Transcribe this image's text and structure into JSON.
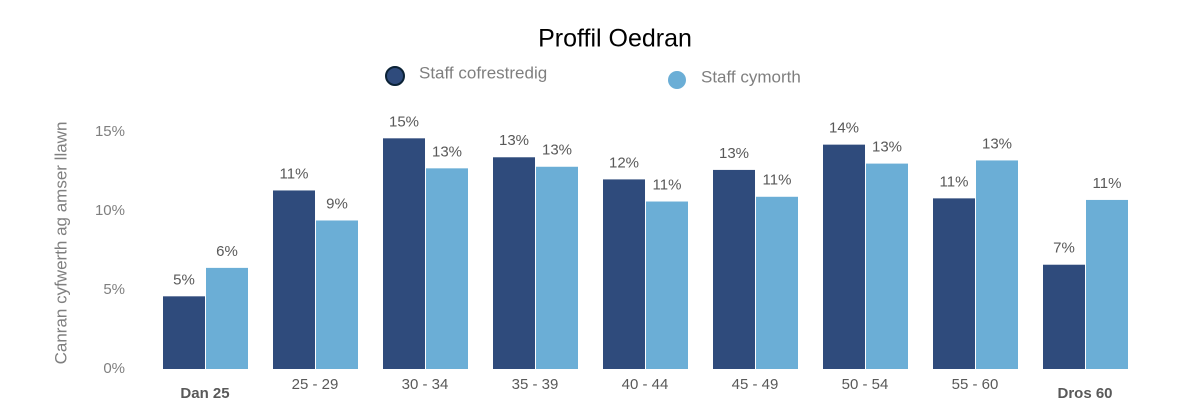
{
  "chart_data": {
    "type": "bar",
    "title": "Proffil Oedran",
    "y_label": "Canran cyfwerth ag amser llawn",
    "categories": [
      "Dan 25",
      "25 - 29",
      "30 - 34",
      "35 - 39",
      "40 - 44",
      "45 - 49",
      "50 - 54",
      "55 - 60",
      "Dros 60"
    ],
    "series": [
      {
        "name": "Staff cofrestredig",
        "color": "#2f4b7c",
        "values": [
          4.6,
          11.3,
          14.6,
          13.4,
          12.0,
          12.6,
          14.2,
          10.8,
          6.6
        ],
        "value_labels": [
          "5%",
          "11%",
          "15%",
          "13%",
          "12%",
          "13%",
          "14%",
          "11%",
          "7%"
        ]
      },
      {
        "name": "Staff cymorth",
        "color": "#6baed6",
        "values": [
          6.4,
          9.4,
          12.7,
          12.8,
          10.6,
          10.9,
          13.0,
          13.2,
          10.7
        ],
        "value_labels": [
          "6%",
          "9%",
          "13%",
          "13%",
          "11%",
          "11%",
          "13%",
          "13%",
          "11%"
        ]
      }
    ],
    "ylim": [
      0,
      16
    ],
    "yticks": [
      {
        "value": 0,
        "label": "0%"
      },
      {
        "value": 5,
        "label": "5%"
      },
      {
        "value": 10,
        "label": "10%"
      },
      {
        "value": 15,
        "label": "15%"
      }
    ],
    "grid": false,
    "legend": "top"
  }
}
